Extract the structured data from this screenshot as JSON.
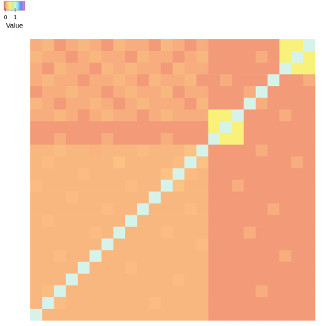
{
  "chart_data": {
    "type": "heatmap",
    "colorbar_title": "Value",
    "zlim": [
      -0.15,
      2
    ],
    "zticks": [
      0,
      1
    ],
    "colorscale": [
      [
        -0.15,
        "#ee8a78"
      ],
      [
        0,
        "#f5a27a"
      ],
      [
        0.15,
        "#fbc283"
      ],
      [
        0.45,
        "#f8f27a"
      ],
      [
        0.8,
        "#bff2a2"
      ],
      [
        1.0,
        "#d6f3ea"
      ],
      [
        1.3,
        "#7fe3f0"
      ],
      [
        1.6,
        "#6a80f0"
      ],
      [
        2.0,
        "#f07af0"
      ]
    ],
    "z": [
      [
        0.05,
        0.1,
        -0.05,
        0.05,
        0.1,
        0.05,
        -0.05,
        0.1,
        0.05,
        0.05,
        -0.05,
        0.1,
        0.05,
        -0.05,
        0.05,
        -0.05,
        -0.05,
        -0.05,
        -0.05,
        -0.05,
        -0.05,
        0.45,
        0.45,
        1
      ],
      [
        0.1,
        0.05,
        0.05,
        -0.05,
        0.05,
        0.1,
        0.05,
        0.05,
        -0.05,
        0.1,
        0.05,
        0.05,
        -0.05,
        0.05,
        0.1,
        -0.05,
        -0.05,
        -0.05,
        -0.05,
        0.05,
        -0.05,
        0.45,
        1,
        0.45
      ],
      [
        0.05,
        -0.05,
        0.1,
        0.05,
        0.05,
        -0.05,
        0.1,
        0.05,
        0.1,
        0.05,
        0.05,
        -0.05,
        0.1,
        0.05,
        0.05,
        -0.05,
        -0.05,
        -0.05,
        -0.05,
        -0.05,
        -0.05,
        1,
        0.45,
        0.45
      ],
      [
        0.05,
        0.1,
        0.05,
        0.05,
        -0.05,
        0.05,
        0.05,
        0.1,
        0.05,
        -0.05,
        0.1,
        0.05,
        0.05,
        0.1,
        -0.05,
        -0.05,
        0.05,
        -0.05,
        -0.05,
        -0.05,
        1,
        -0.05,
        -0.05,
        0.05
      ],
      [
        -0.05,
        0.05,
        0.05,
        0.1,
        0.05,
        0.05,
        -0.05,
        0.05,
        0.1,
        0.05,
        0.05,
        0.1,
        -0.05,
        0.05,
        0.05,
        -0.05,
        -0.05,
        -0.05,
        0.05,
        1,
        -0.05,
        -0.05,
        -0.05,
        -0.05
      ],
      [
        0.1,
        0.05,
        -0.05,
        0.05,
        0.05,
        0.1,
        0.05,
        -0.05,
        0.05,
        0.1,
        0.05,
        0.05,
        0.05,
        -0.05,
        0.1,
        -0.05,
        -0.05,
        -0.05,
        1,
        0.05,
        -0.05,
        -0.05,
        -0.05,
        -0.05
      ],
      [
        0.05,
        0.05,
        0.1,
        0.05,
        -0.05,
        0.05,
        0.1,
        0.05,
        0.05,
        -0.05,
        0.05,
        0.1,
        0.05,
        0.05,
        0.05,
        0.45,
        0.45,
        1,
        -0.05,
        -0.05,
        -0.05,
        0.05,
        -0.05,
        -0.05
      ],
      [
        -0.05,
        -0.05,
        -0.05,
        -0.05,
        -0.05,
        -0.05,
        -0.05,
        -0.05,
        -0.05,
        -0.05,
        -0.05,
        -0.05,
        -0.05,
        -0.05,
        -0.05,
        0.45,
        1,
        0.45,
        -0.05,
        -0.05,
        -0.05,
        -0.05,
        -0.05,
        -0.05
      ],
      [
        -0.05,
        -0.05,
        0.05,
        -0.05,
        -0.05,
        -0.05,
        0.05,
        -0.05,
        -0.05,
        -0.05,
        -0.05,
        0.05,
        -0.05,
        -0.05,
        -0.05,
        1,
        0.45,
        0.45,
        -0.05,
        -0.05,
        -0.05,
        -0.05,
        -0.05,
        -0.05
      ],
      [
        0.1,
        0.1,
        0.12,
        0.1,
        0.1,
        0.08,
        0.1,
        0.1,
        0.1,
        0.12,
        0.1,
        0.1,
        0.1,
        0.15,
        1,
        -0.05,
        -0.05,
        -0.05,
        -0.05,
        0.05,
        -0.05,
        -0.05,
        -0.05,
        -0.05
      ],
      [
        0.1,
        0.12,
        0.1,
        0.1,
        0.1,
        0.1,
        0.1,
        0.15,
        0.1,
        0.1,
        0.1,
        0.1,
        0.12,
        1,
        0.15,
        -0.05,
        -0.05,
        -0.05,
        -0.05,
        -0.05,
        -0.05,
        -0.05,
        0.05,
        -0.05
      ],
      [
        0.1,
        0.1,
        0.1,
        0.1,
        0.12,
        0.1,
        0.1,
        0.1,
        0.1,
        0.1,
        0.1,
        0.15,
        1,
        0.12,
        0.1,
        -0.05,
        -0.05,
        -0.05,
        -0.05,
        -0.05,
        -0.05,
        -0.05,
        -0.05,
        -0.05
      ],
      [
        0.12,
        0.1,
        0.1,
        0.1,
        0.1,
        0.1,
        0.1,
        0.1,
        0.12,
        0.1,
        0.1,
        1,
        0.15,
        0.1,
        0.1,
        -0.05,
        -0.05,
        0.05,
        -0.05,
        -0.05,
        -0.05,
        -0.05,
        -0.05,
        -0.05
      ],
      [
        0.1,
        0.1,
        0.1,
        0.12,
        0.1,
        0.1,
        0.1,
        0.1,
        0.1,
        0.1,
        1,
        0.1,
        0.1,
        0.1,
        0.1,
        -0.05,
        -0.05,
        -0.05,
        -0.05,
        -0.05,
        -0.05,
        -0.05,
        -0.05,
        -0.05
      ],
      [
        0.1,
        0.1,
        0.1,
        0.1,
        0.1,
        0.1,
        0.12,
        0.1,
        0.1,
        1,
        0.1,
        0.1,
        0.1,
        0.12,
        0.1,
        -0.05,
        -0.05,
        -0.05,
        -0.05,
        -0.05,
        0.05,
        -0.05,
        -0.05,
        -0.05
      ],
      [
        0.1,
        0.12,
        0.1,
        0.1,
        0.1,
        0.1,
        0.1,
        0.1,
        1,
        0.1,
        0.1,
        0.1,
        0.1,
        0.1,
        0.1,
        -0.05,
        -0.05,
        -0.05,
        -0.05,
        -0.05,
        -0.05,
        -0.05,
        -0.05,
        -0.05
      ],
      [
        0.1,
        0.1,
        0.1,
        0.1,
        0.1,
        0.12,
        0.1,
        1,
        0.1,
        0.1,
        0.1,
        0.12,
        0.1,
        0.1,
        0.1,
        -0.05,
        -0.05,
        -0.05,
        0.05,
        -0.05,
        -0.05,
        -0.05,
        -0.05,
        -0.05
      ],
      [
        0.1,
        0.1,
        0.1,
        0.1,
        0.1,
        0.1,
        1,
        0.1,
        0.1,
        0.1,
        0.1,
        0.1,
        0.1,
        0.1,
        0.12,
        -0.05,
        -0.05,
        -0.05,
        -0.05,
        -0.05,
        -0.05,
        -0.05,
        -0.05,
        -0.05
      ],
      [
        0.1,
        0.1,
        0.12,
        0.1,
        0.1,
        1,
        0.1,
        0.1,
        0.1,
        0.1,
        0.1,
        0.1,
        0.1,
        0.1,
        0.1,
        -0.05,
        -0.05,
        -0.05,
        -0.05,
        -0.05,
        -0.05,
        0.05,
        -0.05,
        -0.05
      ],
      [
        0.1,
        0.1,
        0.1,
        0.1,
        1,
        0.1,
        0.1,
        0.1,
        0.12,
        0.1,
        0.1,
        0.1,
        0.1,
        0.1,
        0.1,
        -0.05,
        -0.05,
        -0.05,
        -0.05,
        -0.05,
        -0.05,
        -0.05,
        -0.05,
        -0.05
      ],
      [
        0.1,
        0.1,
        0.1,
        1,
        0.1,
        0.1,
        0.1,
        0.1,
        0.1,
        0.1,
        0.1,
        0.1,
        0.12,
        0.1,
        0.1,
        -0.05,
        -0.05,
        -0.05,
        -0.05,
        -0.05,
        -0.05,
        -0.05,
        -0.05,
        -0.05
      ],
      [
        0.1,
        0.12,
        1,
        0.1,
        0.1,
        0.1,
        0.1,
        0.1,
        0.1,
        0.1,
        0.1,
        0.1,
        0.1,
        0.1,
        0.1,
        -0.05,
        -0.05,
        -0.05,
        -0.05,
        0.05,
        -0.05,
        -0.05,
        -0.05,
        -0.05
      ],
      [
        0.1,
        1,
        0.12,
        0.1,
        0.1,
        0.1,
        0.1,
        0.1,
        0.1,
        0.1,
        0.12,
        0.1,
        0.1,
        0.1,
        0.1,
        -0.05,
        -0.05,
        -0.05,
        -0.05,
        -0.05,
        -0.05,
        -0.05,
        -0.05,
        -0.05
      ],
      [
        1,
        0.1,
        0.1,
        0.1,
        0.1,
        0.1,
        0.1,
        0.1,
        0.1,
        0.1,
        0.1,
        0.1,
        0.1,
        0.1,
        0.1,
        -0.05,
        -0.05,
        -0.05,
        -0.05,
        -0.05,
        -0.05,
        -0.05,
        -0.05,
        -0.05
      ]
    ]
  }
}
